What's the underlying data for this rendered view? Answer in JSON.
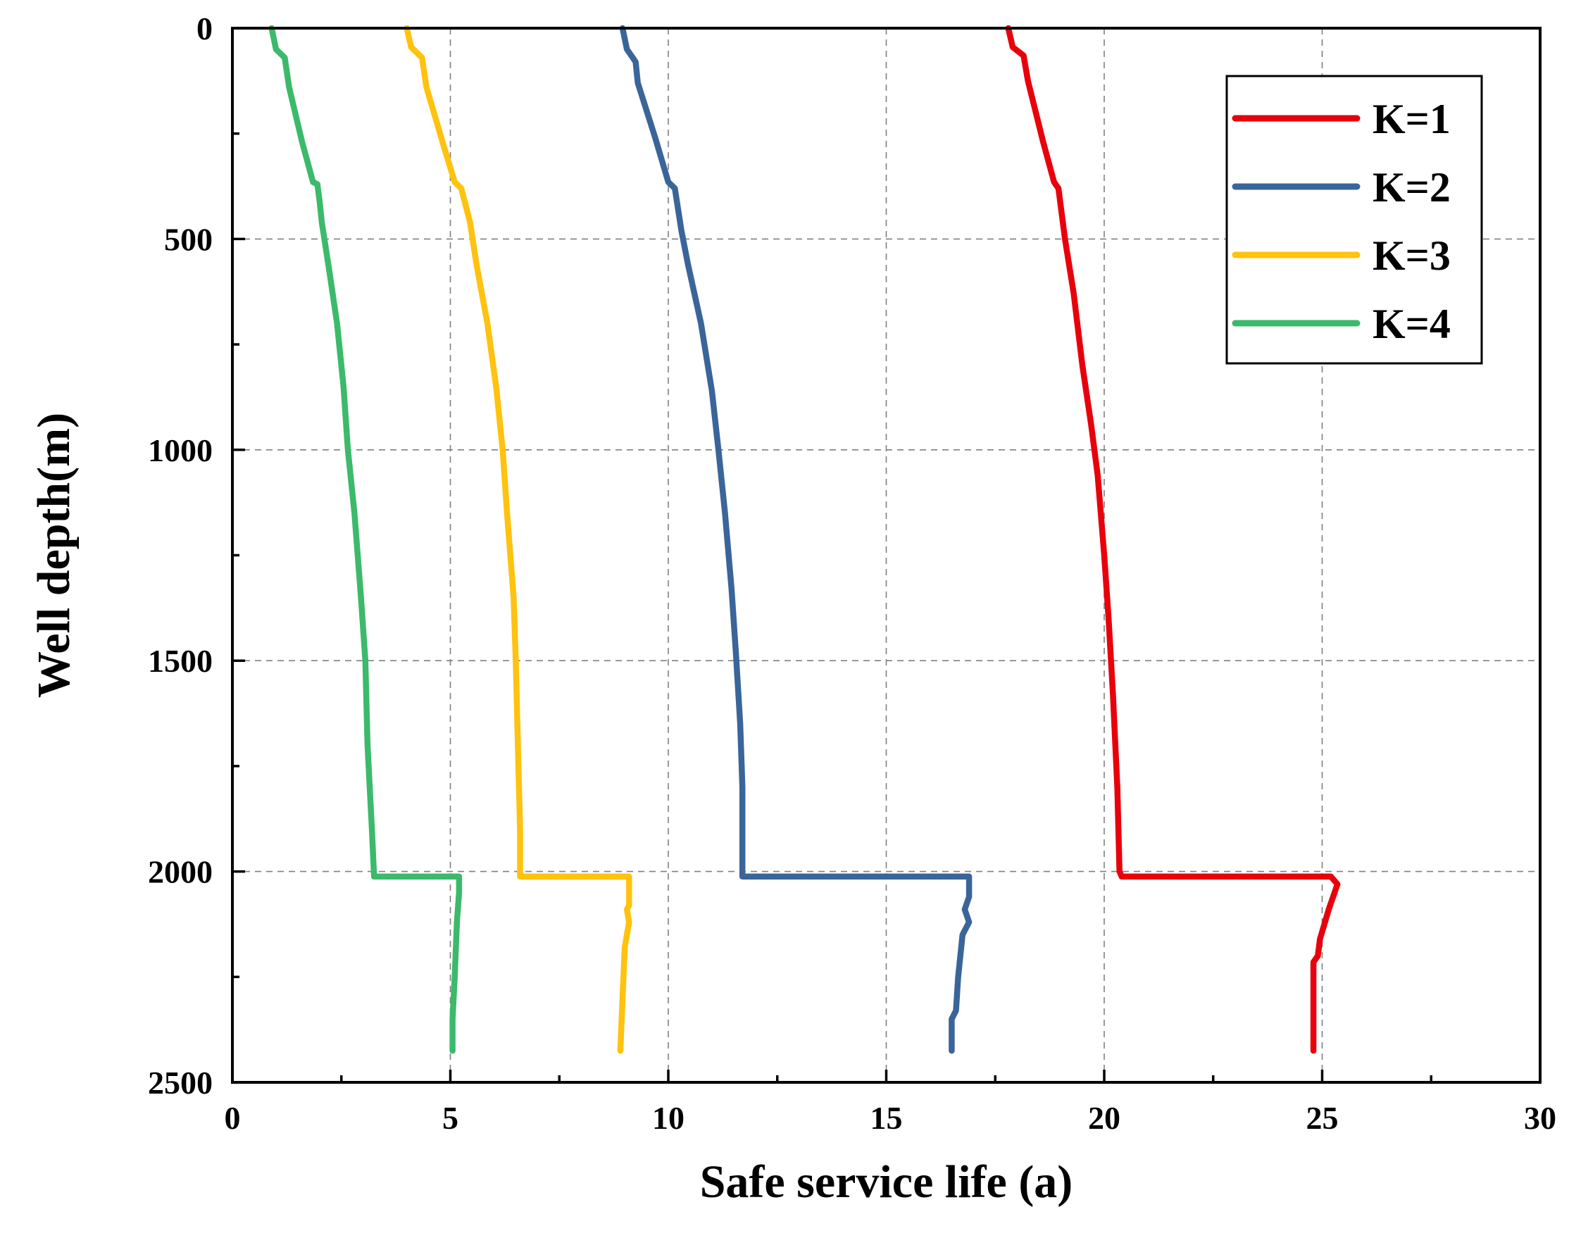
{
  "chart_data": {
    "type": "line",
    "title": "",
    "xlabel": "Safe service life (a)",
    "ylabel": "Well depth(m)",
    "xlim": [
      0,
      30
    ],
    "ylim": [
      0,
      2500
    ],
    "y_inverted": true,
    "x_major_ticks": [
      0,
      5,
      10,
      15,
      20,
      25,
      30
    ],
    "x_minor_ticks": [
      2.5,
      7.5,
      12.5,
      17.5,
      22.5,
      27.5
    ],
    "y_major_ticks": [
      0,
      500,
      1000,
      1500,
      2000,
      2500
    ],
    "y_minor_ticks": [
      250,
      750,
      1250,
      1750,
      2250
    ],
    "x_tick_labels": [
      "0",
      "5",
      "10",
      "15",
      "20",
      "25",
      "30"
    ],
    "y_tick_labels": [
      "0",
      "500",
      "1000",
      "1500",
      "2000",
      "2500"
    ],
    "grid": true,
    "legend_position": "top-right",
    "series": [
      {
        "name": "K=1",
        "color": "#e8000b",
        "points": [
          [
            17.8,
            0
          ],
          [
            17.9,
            45
          ],
          [
            18.15,
            65
          ],
          [
            18.25,
            125
          ],
          [
            18.6,
            270
          ],
          [
            18.85,
            365
          ],
          [
            18.95,
            380
          ],
          [
            19.1,
            500
          ],
          [
            19.3,
            630
          ],
          [
            19.5,
            800
          ],
          [
            19.7,
            940
          ],
          [
            19.85,
            1060
          ],
          [
            20.0,
            1250
          ],
          [
            20.1,
            1400
          ],
          [
            20.2,
            1580
          ],
          [
            20.3,
            1800
          ],
          [
            20.35,
            2000
          ],
          [
            20.4,
            2012
          ],
          [
            25.2,
            2012
          ],
          [
            25.35,
            2030
          ],
          [
            25.15,
            2090
          ],
          [
            24.95,
            2160
          ],
          [
            24.9,
            2200
          ],
          [
            24.8,
            2215
          ],
          [
            24.8,
            2300
          ],
          [
            24.8,
            2425
          ]
        ]
      },
      {
        "name": "K=2",
        "color": "#3a6599",
        "points": [
          [
            8.95,
            0
          ],
          [
            9.05,
            50
          ],
          [
            9.25,
            80
          ],
          [
            9.3,
            130
          ],
          [
            9.7,
            260
          ],
          [
            10.0,
            365
          ],
          [
            10.15,
            380
          ],
          [
            10.3,
            480
          ],
          [
            10.45,
            560
          ],
          [
            10.75,
            700
          ],
          [
            11.0,
            860
          ],
          [
            11.15,
            1000
          ],
          [
            11.3,
            1150
          ],
          [
            11.45,
            1330
          ],
          [
            11.55,
            1480
          ],
          [
            11.65,
            1650
          ],
          [
            11.7,
            1800
          ],
          [
            11.7,
            2012
          ],
          [
            16.9,
            2012
          ],
          [
            16.9,
            2060
          ],
          [
            16.8,
            2090
          ],
          [
            16.9,
            2120
          ],
          [
            16.75,
            2150
          ],
          [
            16.65,
            2250
          ],
          [
            16.6,
            2330
          ],
          [
            16.5,
            2350
          ],
          [
            16.5,
            2425
          ]
        ]
      },
      {
        "name": "K=3",
        "color": "#ffc20e",
        "points": [
          [
            4.0,
            0
          ],
          [
            4.1,
            45
          ],
          [
            4.35,
            70
          ],
          [
            4.45,
            140
          ],
          [
            4.85,
            280
          ],
          [
            5.1,
            365
          ],
          [
            5.25,
            380
          ],
          [
            5.45,
            460
          ],
          [
            5.6,
            560
          ],
          [
            5.85,
            700
          ],
          [
            6.05,
            850
          ],
          [
            6.2,
            1000
          ],
          [
            6.3,
            1150
          ],
          [
            6.45,
            1350
          ],
          [
            6.5,
            1500
          ],
          [
            6.55,
            1700
          ],
          [
            6.6,
            1900
          ],
          [
            6.6,
            2012
          ],
          [
            9.1,
            2012
          ],
          [
            9.1,
            2080
          ],
          [
            9.05,
            2090
          ],
          [
            9.1,
            2120
          ],
          [
            9.0,
            2180
          ],
          [
            8.95,
            2300
          ],
          [
            8.9,
            2425
          ]
        ]
      },
      {
        "name": "K=4",
        "color": "#3cba6b",
        "points": [
          [
            0.9,
            0
          ],
          [
            1.0,
            50
          ],
          [
            1.2,
            70
          ],
          [
            1.3,
            140
          ],
          [
            1.6,
            270
          ],
          [
            1.85,
            365
          ],
          [
            1.95,
            370
          ],
          [
            2.0,
            410
          ],
          [
            2.05,
            460
          ],
          [
            2.2,
            560
          ],
          [
            2.4,
            700
          ],
          [
            2.55,
            850
          ],
          [
            2.65,
            1000
          ],
          [
            2.8,
            1150
          ],
          [
            2.95,
            1350
          ],
          [
            3.05,
            1500
          ],
          [
            3.1,
            1700
          ],
          [
            3.2,
            1900
          ],
          [
            3.25,
            2012
          ],
          [
            5.2,
            2012
          ],
          [
            5.2,
            2050
          ],
          [
            5.15,
            2120
          ],
          [
            5.1,
            2250
          ],
          [
            5.05,
            2350
          ],
          [
            5.05,
            2425
          ]
        ]
      }
    ]
  }
}
